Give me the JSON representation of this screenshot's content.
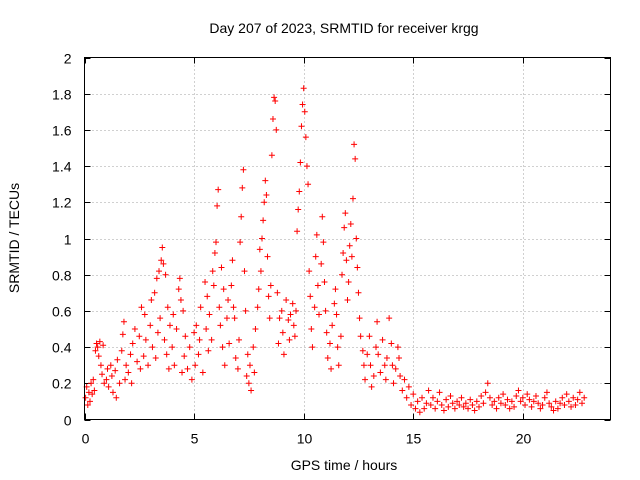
{
  "chart_data": {
    "type": "scatter",
    "title": "Day 207 of 2023, SRMTID for receiver krgg",
    "xlabel": "GPS time / hours",
    "ylabel": "SRMTID / TECUs",
    "xlim": [
      0,
      24
    ],
    "ylim": [
      0,
      2
    ],
    "xticks": [
      0,
      5,
      10,
      15,
      20
    ],
    "yticks": [
      0,
      0.2,
      0.4,
      0.6,
      0.8,
      1,
      1.2,
      1.4,
      1.6,
      1.8,
      2
    ],
    "grid": true,
    "marker": "plus",
    "color": "#ff0000",
    "series": [
      {
        "name": "SRMTID",
        "points": [
          [
            0.05,
            0.12
          ],
          [
            0.1,
            0.18
          ],
          [
            0.15,
            0.08
          ],
          [
            0.2,
            0.15
          ],
          [
            0.25,
            0.1
          ],
          [
            0.3,
            0.2
          ],
          [
            0.35,
            0.14
          ],
          [
            0.4,
            0.22
          ],
          [
            0.45,
            0.16
          ],
          [
            0.5,
            0.38
          ],
          [
            0.55,
            0.42
          ],
          [
            0.6,
            0.4
          ],
          [
            0.65,
            0.35
          ],
          [
            0.7,
            0.43
          ],
          [
            0.75,
            0.3
          ],
          [
            0.8,
            0.25
          ],
          [
            0.85,
            0.41
          ],
          [
            0.9,
            0.2
          ],
          [
            1.0,
            0.22
          ],
          [
            1.05,
            0.28
          ],
          [
            1.1,
            0.18
          ],
          [
            1.2,
            0.3
          ],
          [
            1.25,
            0.24
          ],
          [
            1.3,
            0.15
          ],
          [
            1.4,
            0.27
          ],
          [
            1.45,
            0.12
          ],
          [
            1.5,
            0.33
          ],
          [
            1.6,
            0.2
          ],
          [
            1.7,
            0.38
          ],
          [
            1.75,
            0.47
          ],
          [
            1.8,
            0.54
          ],
          [
            1.85,
            0.22
          ],
          [
            1.9,
            0.3
          ],
          [
            2.0,
            0.26
          ],
          [
            2.1,
            0.36
          ],
          [
            2.15,
            0.2
          ],
          [
            2.2,
            0.42
          ],
          [
            2.3,
            0.5
          ],
          [
            2.4,
            0.32
          ],
          [
            2.5,
            0.46
          ],
          [
            2.55,
            0.28
          ],
          [
            2.6,
            0.62
          ],
          [
            2.7,
            0.35
          ],
          [
            2.75,
            0.58
          ],
          [
            2.8,
            0.44
          ],
          [
            2.9,
            0.3
          ],
          [
            3.0,
            0.52
          ],
          [
            3.05,
            0.66
          ],
          [
            3.1,
            0.4
          ],
          [
            3.2,
            0.7
          ],
          [
            3.25,
            0.34
          ],
          [
            3.3,
            0.78
          ],
          [
            3.35,
            0.48
          ],
          [
            3.4,
            0.82
          ],
          [
            3.45,
            0.56
          ],
          [
            3.5,
            0.88
          ],
          [
            3.55,
            0.95
          ],
          [
            3.6,
            0.86
          ],
          [
            3.65,
            0.44
          ],
          [
            3.7,
            0.8
          ],
          [
            3.75,
            0.36
          ],
          [
            3.8,
            0.62
          ],
          [
            3.85,
            0.28
          ],
          [
            3.9,
            0.52
          ],
          [
            4.0,
            0.4
          ],
          [
            4.05,
            0.58
          ],
          [
            4.1,
            0.3
          ],
          [
            4.2,
            0.5
          ],
          [
            4.3,
            0.72
          ],
          [
            4.35,
            0.78
          ],
          [
            4.4,
            0.66
          ],
          [
            4.45,
            0.26
          ],
          [
            4.5,
            0.6
          ],
          [
            4.55,
            0.35
          ],
          [
            4.6,
            0.46
          ],
          [
            4.7,
            0.28
          ],
          [
            4.8,
            0.4
          ],
          [
            4.9,
            0.22
          ],
          [
            5.0,
            0.48
          ],
          [
            5.05,
            0.3
          ],
          [
            5.1,
            0.52
          ],
          [
            5.2,
            0.36
          ],
          [
            5.25,
            0.44
          ],
          [
            5.3,
            0.62
          ],
          [
            5.4,
            0.26
          ],
          [
            5.5,
            0.76
          ],
          [
            5.55,
            0.5
          ],
          [
            5.6,
            0.68
          ],
          [
            5.65,
            0.38
          ],
          [
            5.7,
            0.58
          ],
          [
            5.8,
            0.44
          ],
          [
            5.85,
            0.82
          ],
          [
            5.9,
            0.74
          ],
          [
            5.95,
            0.92
          ],
          [
            6.0,
            0.98
          ],
          [
            6.05,
            1.18
          ],
          [
            6.1,
            1.27
          ],
          [
            6.15,
            0.62
          ],
          [
            6.2,
            0.52
          ],
          [
            6.25,
            0.84
          ],
          [
            6.3,
            0.4
          ],
          [
            6.35,
            0.72
          ],
          [
            6.4,
            0.3
          ],
          [
            6.5,
            0.56
          ],
          [
            6.55,
            0.66
          ],
          [
            6.6,
            0.42
          ],
          [
            6.7,
            0.74
          ],
          [
            6.75,
            0.88
          ],
          [
            6.8,
            0.62
          ],
          [
            6.85,
            0.56
          ],
          [
            6.9,
            0.34
          ],
          [
            7.0,
            0.28
          ],
          [
            7.05,
            0.44
          ],
          [
            7.1,
            0.98
          ],
          [
            7.15,
            1.12
          ],
          [
            7.2,
            1.28
          ],
          [
            7.25,
            1.38
          ],
          [
            7.3,
            0.82
          ],
          [
            7.35,
            0.6
          ],
          [
            7.4,
            0.24
          ],
          [
            7.45,
            0.36
          ],
          [
            7.5,
            0.2
          ],
          [
            7.55,
            0.3
          ],
          [
            7.6,
            0.16
          ],
          [
            7.7,
            0.4
          ],
          [
            7.75,
            0.26
          ],
          [
            7.8,
            0.5
          ],
          [
            7.9,
            0.62
          ],
          [
            7.95,
            0.72
          ],
          [
            8.0,
            0.94
          ],
          [
            8.05,
            0.82
          ],
          [
            8.1,
            1.0
          ],
          [
            8.15,
            1.1
          ],
          [
            8.2,
            1.2
          ],
          [
            8.25,
            1.32
          ],
          [
            8.3,
            1.24
          ],
          [
            8.35,
            0.9
          ],
          [
            8.4,
            0.68
          ],
          [
            8.45,
            0.56
          ],
          [
            8.5,
            0.74
          ],
          [
            8.55,
            1.46
          ],
          [
            8.6,
            1.66
          ],
          [
            8.65,
            1.78
          ],
          [
            8.7,
            1.76
          ],
          [
            8.75,
            1.6
          ],
          [
            8.8,
            0.7
          ],
          [
            8.85,
            0.42
          ],
          [
            8.9,
            0.56
          ],
          [
            9.0,
            0.6
          ],
          [
            9.05,
            0.48
          ],
          [
            9.1,
            0.36
          ],
          [
            9.2,
            0.66
          ],
          [
            9.3,
            0.55
          ],
          [
            9.35,
            0.44
          ],
          [
            9.4,
            0.58
          ],
          [
            9.5,
            0.64
          ],
          [
            9.55,
            0.52
          ],
          [
            9.6,
            0.46
          ],
          [
            9.65,
            0.6
          ],
          [
            9.7,
            1.04
          ],
          [
            9.75,
            1.16
          ],
          [
            9.8,
            1.26
          ],
          [
            9.85,
            1.42
          ],
          [
            9.9,
            1.62
          ],
          [
            9.95,
            1.74
          ],
          [
            10.0,
            1.83
          ],
          [
            10.05,
            1.7
          ],
          [
            10.1,
            1.56
          ],
          [
            10.15,
            1.4
          ],
          [
            10.2,
            1.3
          ],
          [
            10.25,
            0.82
          ],
          [
            10.3,
            0.68
          ],
          [
            10.35,
            0.5
          ],
          [
            10.4,
            0.4
          ],
          [
            10.5,
            0.62
          ],
          [
            10.55,
            0.9
          ],
          [
            10.6,
            1.02
          ],
          [
            10.65,
            0.74
          ],
          [
            10.7,
            0.58
          ],
          [
            10.8,
            0.86
          ],
          [
            10.85,
            1.12
          ],
          [
            10.9,
            0.98
          ],
          [
            10.95,
            0.76
          ],
          [
            11.0,
            0.6
          ],
          [
            11.05,
            0.48
          ],
          [
            11.1,
            0.34
          ],
          [
            11.2,
            0.42
          ],
          [
            11.25,
            0.28
          ],
          [
            11.3,
            0.52
          ],
          [
            11.4,
            0.64
          ],
          [
            11.45,
            0.72
          ],
          [
            11.5,
            0.58
          ],
          [
            11.55,
            0.4
          ],
          [
            11.6,
            0.3
          ],
          [
            11.7,
            0.46
          ],
          [
            11.75,
            0.8
          ],
          [
            11.8,
            0.92
          ],
          [
            11.85,
            1.06
          ],
          [
            11.9,
            1.14
          ],
          [
            11.95,
            0.88
          ],
          [
            12.0,
            0.66
          ],
          [
            12.05,
            0.76
          ],
          [
            12.1,
            0.96
          ],
          [
            12.15,
            1.08
          ],
          [
            12.2,
            0.9
          ],
          [
            12.25,
            1.22
          ],
          [
            12.3,
            1.52
          ],
          [
            12.35,
            1.44
          ],
          [
            12.4,
            1.0
          ],
          [
            12.45,
            0.84
          ],
          [
            12.5,
            0.7
          ],
          [
            12.55,
            0.56
          ],
          [
            12.6,
            0.46
          ],
          [
            12.7,
            0.38
          ],
          [
            12.75,
            0.3
          ],
          [
            12.8,
            0.22
          ],
          [
            12.9,
            0.36
          ],
          [
            13.0,
            0.46
          ],
          [
            13.05,
            0.3
          ],
          [
            13.1,
            0.18
          ],
          [
            13.2,
            0.24
          ],
          [
            13.3,
            0.4
          ],
          [
            13.35,
            0.54
          ],
          [
            13.4,
            0.36
          ],
          [
            13.5,
            0.26
          ],
          [
            13.6,
            0.44
          ],
          [
            13.7,
            0.3
          ],
          [
            13.75,
            0.22
          ],
          [
            13.8,
            0.34
          ],
          [
            13.9,
            0.56
          ],
          [
            14.0,
            0.42
          ],
          [
            14.05,
            0.3
          ],
          [
            14.1,
            0.2
          ],
          [
            14.2,
            0.28
          ],
          [
            14.3,
            0.4
          ],
          [
            14.35,
            0.34
          ],
          [
            14.4,
            0.24
          ],
          [
            14.5,
            0.16
          ],
          [
            14.6,
            0.22
          ],
          [
            14.7,
            0.12
          ],
          [
            14.8,
            0.18
          ],
          [
            14.9,
            0.08
          ],
          [
            15.0,
            0.14
          ],
          [
            15.1,
            0.06
          ],
          [
            15.2,
            0.1
          ],
          [
            15.3,
            0.04
          ],
          [
            15.4,
            0.12
          ],
          [
            15.5,
            0.06
          ],
          [
            15.6,
            0.09
          ],
          [
            15.7,
            0.16
          ],
          [
            15.8,
            0.08
          ],
          [
            15.9,
            0.12
          ],
          [
            16.0,
            0.06
          ],
          [
            16.1,
            0.1
          ],
          [
            16.2,
            0.15
          ],
          [
            16.3,
            0.08
          ],
          [
            16.4,
            0.05
          ],
          [
            16.5,
            0.11
          ],
          [
            16.6,
            0.07
          ],
          [
            16.7,
            0.13
          ],
          [
            16.8,
            0.09
          ],
          [
            16.9,
            0.06
          ],
          [
            17.0,
            0.1
          ],
          [
            17.1,
            0.08
          ],
          [
            17.2,
            0.12
          ],
          [
            17.3,
            0.07
          ],
          [
            17.4,
            0.09
          ],
          [
            17.5,
            0.06
          ],
          [
            17.6,
            0.11
          ],
          [
            17.7,
            0.08
          ],
          [
            17.8,
            0.05
          ],
          [
            17.9,
            0.1
          ],
          [
            18.0,
            0.07
          ],
          [
            18.1,
            0.13
          ],
          [
            18.2,
            0.09
          ],
          [
            18.3,
            0.15
          ],
          [
            18.4,
            0.2
          ],
          [
            18.5,
            0.12
          ],
          [
            18.6,
            0.08
          ],
          [
            18.7,
            0.1
          ],
          [
            18.8,
            0.06
          ],
          [
            18.9,
            0.12
          ],
          [
            19.0,
            0.09
          ],
          [
            19.1,
            0.14
          ],
          [
            19.2,
            0.08
          ],
          [
            19.3,
            0.11
          ],
          [
            19.4,
            0.06
          ],
          [
            19.5,
            0.1
          ],
          [
            19.6,
            0.07
          ],
          [
            19.7,
            0.13
          ],
          [
            19.8,
            0.16
          ],
          [
            19.9,
            0.1
          ],
          [
            20.0,
            0.12
          ],
          [
            20.1,
            0.08
          ],
          [
            20.2,
            0.14
          ],
          [
            20.3,
            0.11
          ],
          [
            20.4,
            0.07
          ],
          [
            20.5,
            0.1
          ],
          [
            20.6,
            0.13
          ],
          [
            20.7,
            0.09
          ],
          [
            20.8,
            0.06
          ],
          [
            20.9,
            0.08
          ],
          [
            21.0,
            0.12
          ],
          [
            21.1,
            0.15
          ],
          [
            21.2,
            0.09
          ],
          [
            21.3,
            0.07
          ],
          [
            21.4,
            0.05
          ],
          [
            21.5,
            0.1
          ],
          [
            21.6,
            0.06
          ],
          [
            21.7,
            0.09
          ],
          [
            21.8,
            0.12
          ],
          [
            21.9,
            0.08
          ],
          [
            22.0,
            0.14
          ],
          [
            22.1,
            0.1
          ],
          [
            22.2,
            0.07
          ],
          [
            22.3,
            0.12
          ],
          [
            22.4,
            0.08
          ],
          [
            22.5,
            0.11
          ],
          [
            22.6,
            0.15
          ],
          [
            22.7,
            0.09
          ],
          [
            22.8,
            0.12
          ]
        ]
      }
    ]
  }
}
